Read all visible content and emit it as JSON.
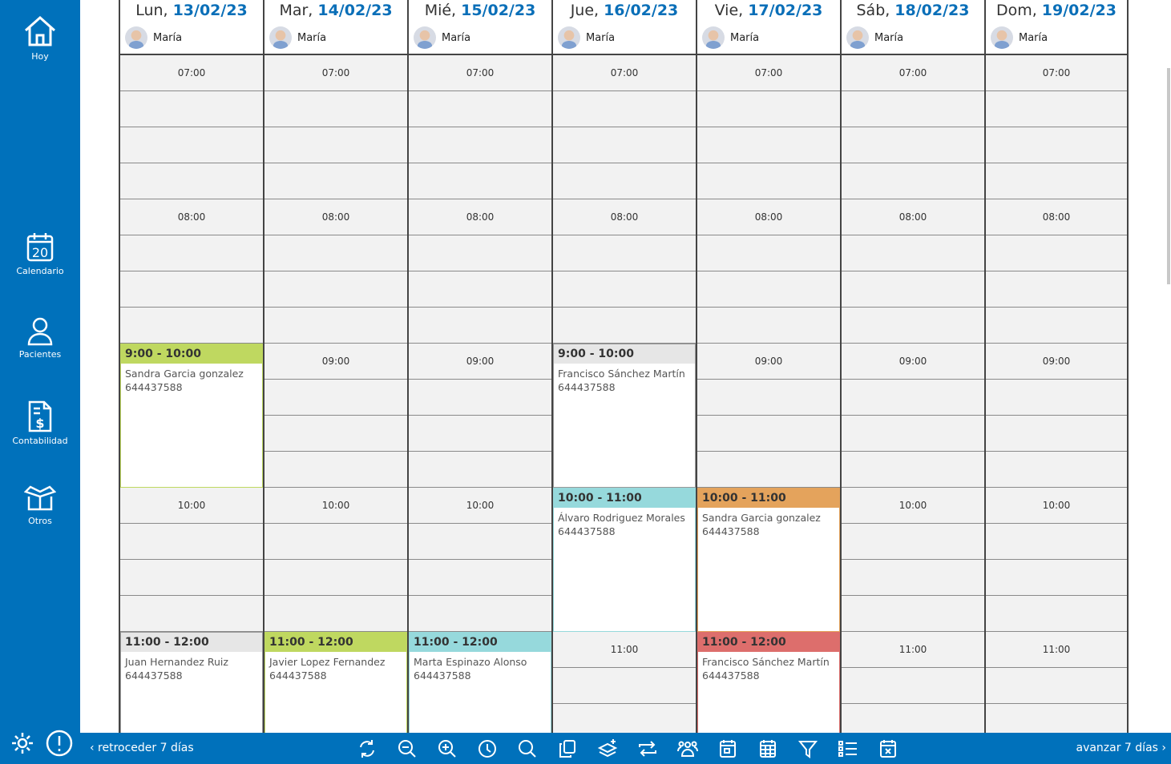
{
  "sidebar": {
    "items": [
      {
        "label": "Hoy",
        "icon": "home-icon"
      },
      {
        "label": "Calendario",
        "icon": "calendar-icon",
        "day": "20"
      },
      {
        "label": "Pacientes",
        "icon": "person-icon"
      },
      {
        "label": "Contabilidad",
        "icon": "invoice-icon"
      },
      {
        "label": "Otros",
        "icon": "box-icon"
      }
    ],
    "footer": [
      "gear-icon",
      "alert-icon"
    ]
  },
  "calendar": {
    "hours": [
      "07:00",
      "08:00",
      "09:00",
      "10:00",
      "11:00"
    ],
    "days": [
      {
        "name": "Lun,",
        "date": "13/02/23",
        "doctor": "María",
        "events": [
          {
            "time": "9:00 - 10:00",
            "start": 9,
            "patient": "Sandra Garcia gonzalez",
            "phone": "644437588",
            "color": "#bfd860"
          },
          {
            "time": "11:00 - 12:00",
            "start": 11,
            "patient": "Juan Hernandez Ruiz",
            "phone": "644437588",
            "color": "#e6e6e6"
          }
        ]
      },
      {
        "name": "Mar,",
        "date": "14/02/23",
        "doctor": "María",
        "events": [
          {
            "time": "11:00 - 12:00",
            "start": 11,
            "patient": "Javier Lopez Fernandez",
            "phone": "644437588",
            "color": "#bfd860"
          }
        ]
      },
      {
        "name": "Mié,",
        "date": "15/02/23",
        "doctor": "María",
        "events": [
          {
            "time": "11:00 - 12:00",
            "start": 11,
            "patient": "Marta Espinazo Alonso",
            "phone": "644437588",
            "color": "#96d9dc"
          }
        ]
      },
      {
        "name": "Jue,",
        "date": "16/02/23",
        "doctor": "María",
        "events": [
          {
            "time": "9:00 - 10:00",
            "start": 9,
            "patient": "Francisco Sánchez Martín",
            "phone": "644437588",
            "color": "#e6e6e6"
          },
          {
            "time": "10:00 - 11:00",
            "start": 10,
            "patient": "Álvaro Rodriguez Morales",
            "phone": "644437588",
            "color": "#96d9dc"
          }
        ]
      },
      {
        "name": "Vie,",
        "date": "17/02/23",
        "doctor": "María",
        "events": [
          {
            "time": "10:00 - 11:00",
            "start": 10,
            "patient": "Sandra Garcia gonzalez",
            "phone": "644437588",
            "color": "#e4a35c"
          },
          {
            "time": "11:00 - 12:00",
            "start": 11,
            "patient": "Francisco Sánchez Martín",
            "phone": "644437588",
            "color": "#dd6e6c"
          }
        ]
      },
      {
        "name": "Sáb,",
        "date": "18/02/23",
        "doctor": "María",
        "events": []
      },
      {
        "name": "Dom,",
        "date": "19/02/23",
        "doctor": "María",
        "events": []
      }
    ]
  },
  "toolbar": {
    "prev": "‹ retroceder 7 días",
    "next": "avanzar 7 días ›",
    "icons": [
      "refresh-icon",
      "zoom-out-icon",
      "zoom-in-icon",
      "clock-icon",
      "search-icon",
      "copy-icon",
      "add-layer-icon",
      "repeat-icon",
      "group-icon",
      "day-view-icon",
      "month-view-icon",
      "filter-icon",
      "list-icon",
      "calendar-cancel-icon"
    ]
  }
}
